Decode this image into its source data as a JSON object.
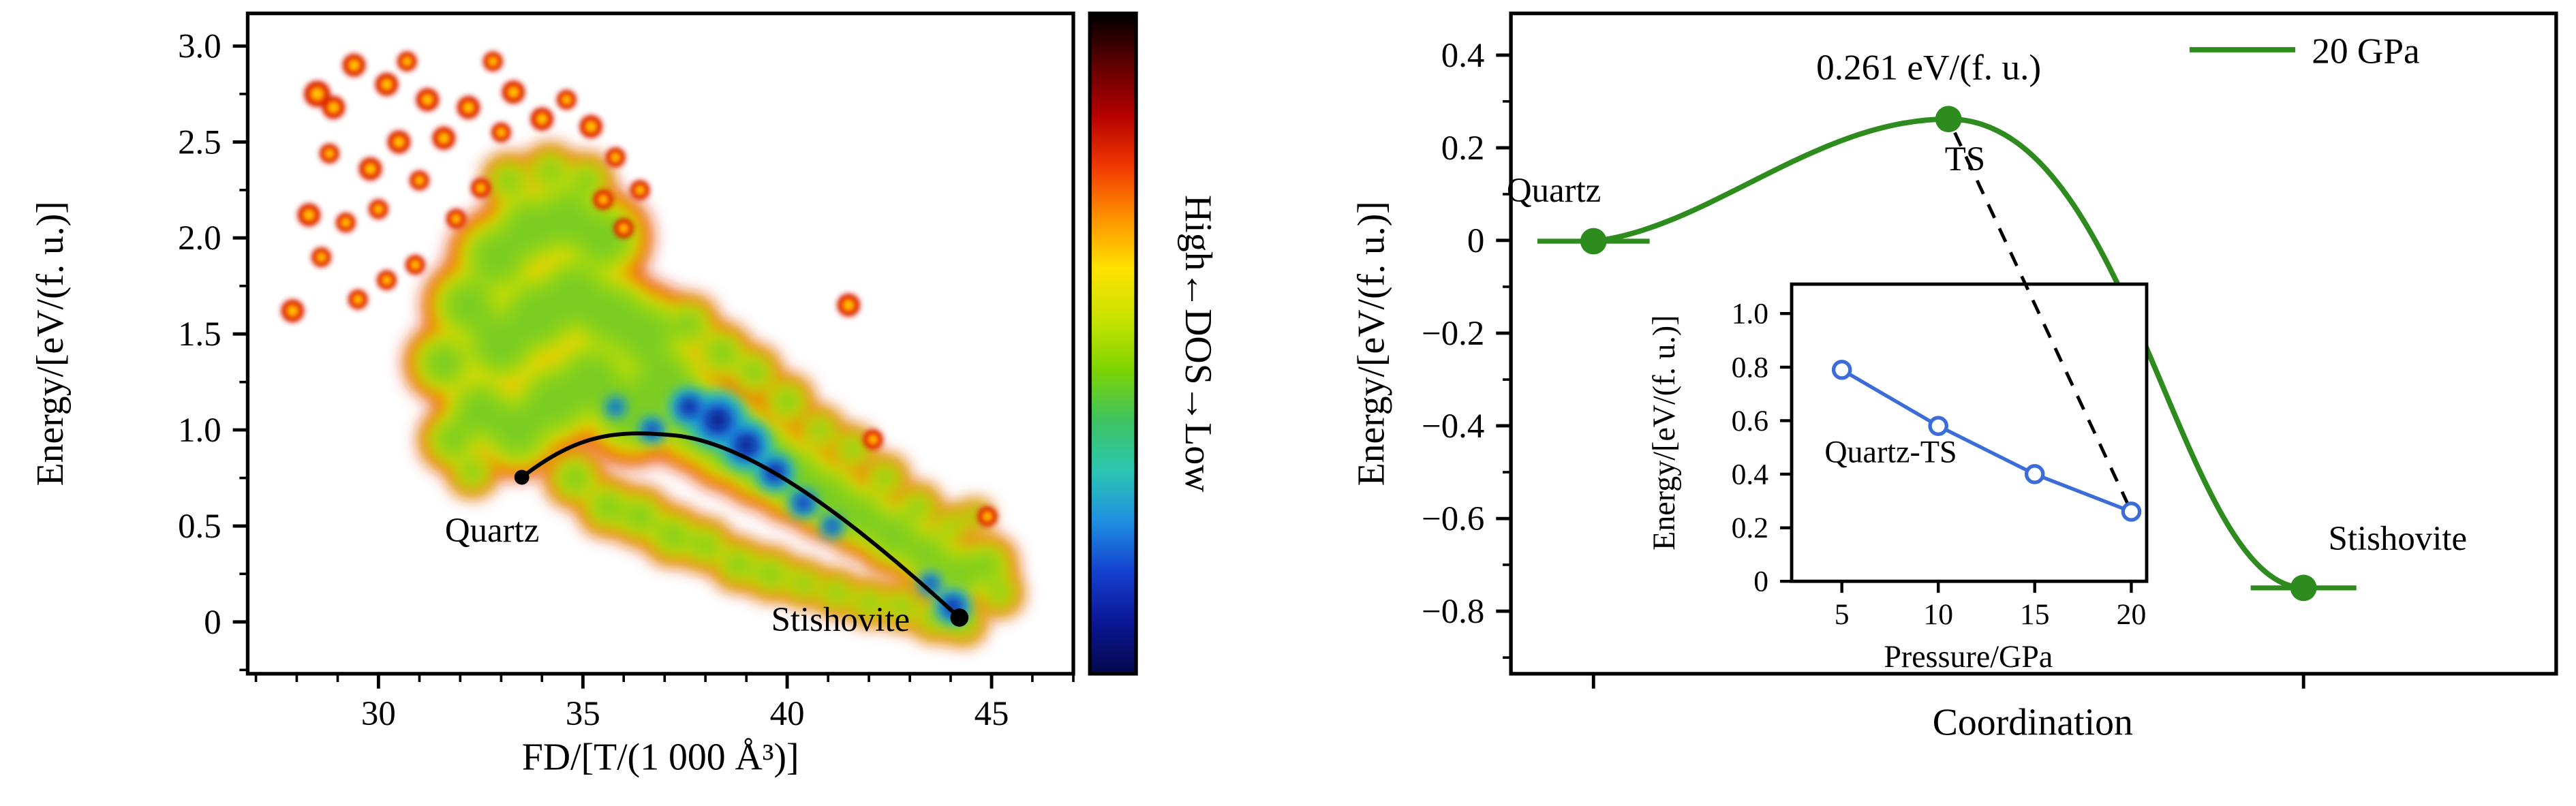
{
  "figure": {
    "background": "#ffffff"
  },
  "chart_data": [
    {
      "id": "dos-density-map",
      "type": "heatmap",
      "xlabel": "FD/[T/(1 000 Å³)]",
      "ylabel": "Energy/[eV/(f. u.)]",
      "xlim": [
        26.8,
        47.0
      ],
      "ylim": [
        -0.27,
        3.17
      ],
      "xticks": [
        30,
        35,
        40,
        45
      ],
      "yticks": [
        {
          "v": 0,
          "label": "0"
        },
        {
          "v": 0.5,
          "label": "0.5"
        },
        {
          "v": 1,
          "label": "1.0"
        },
        {
          "v": 1.5,
          "label": "1.5"
        },
        {
          "v": 2,
          "label": "2.0"
        },
        {
          "v": 2.5,
          "label": "2.5"
        },
        {
          "v": 3,
          "label": "3.0"
        }
      ],
      "grid": false,
      "colorbar": {
        "label": "High←DOS→Low",
        "orientation": "vertical",
        "stops": [
          "#000000",
          "#5f0000",
          "#b40000",
          "#f03800",
          "#ff9000",
          "#ffe100",
          "#c9e300",
          "#7fd400",
          "#3fc35f",
          "#2cc6b2",
          "#1f8fe0",
          "#1440cf",
          "#0a1694",
          "#04094d"
        ]
      },
      "annotations": [
        {
          "text": "Quartz",
          "x": 32.8,
          "y": 0.42
        },
        {
          "text": "Stishovite",
          "x": 41.3,
          "y": -0.05
        }
      ],
      "transition_path": {
        "color": "#000000",
        "start": {
          "label": "Quartz",
          "x": 33.5,
          "y": 0.75
        },
        "peak": {
          "x": 37.4,
          "y": 0.97
        },
        "end": {
          "label": "Stishovite",
          "x": 44.2,
          "y": 0.02
        }
      },
      "density_cloud": {
        "layers": [
          {
            "color": "#d81e00",
            "scale": 1.0
          },
          {
            "color": "#ff7a00",
            "scale": 0.9
          },
          {
            "color": "#ffd800",
            "scale": 0.8
          },
          {
            "color": "#bfdf00",
            "scale": 0.7
          },
          {
            "color": "#7ccd20",
            "scale": 0.57
          }
        ],
        "kernels": [
          [
            31.6,
            1.35,
            22
          ],
          [
            32.2,
            1.65,
            26
          ],
          [
            32.9,
            1.9,
            28
          ],
          [
            33.7,
            2.05,
            28
          ],
          [
            34.6,
            2.1,
            28
          ],
          [
            35.5,
            2.0,
            28
          ],
          [
            33.0,
            1.45,
            30
          ],
          [
            33.9,
            1.6,
            32
          ],
          [
            34.8,
            1.7,
            32
          ],
          [
            35.7,
            1.6,
            30
          ],
          [
            36.5,
            1.5,
            30
          ],
          [
            32.5,
            1.1,
            26
          ],
          [
            33.4,
            1.0,
            28
          ],
          [
            34.3,
            1.15,
            30
          ],
          [
            35.2,
            1.25,
            32
          ],
          [
            36.2,
            1.1,
            32
          ],
          [
            37.0,
            1.25,
            30
          ],
          [
            33.2,
            2.3,
            14
          ],
          [
            34.2,
            2.35,
            14
          ],
          [
            35.1,
            2.3,
            14
          ],
          [
            31.8,
            0.95,
            18
          ],
          [
            32.3,
            0.78,
            13
          ],
          [
            37.8,
            1.05,
            30
          ],
          [
            38.6,
            0.95,
            30
          ],
          [
            39.4,
            0.85,
            28
          ],
          [
            40.2,
            0.75,
            26
          ],
          [
            41.0,
            0.65,
            24
          ],
          [
            41.8,
            0.55,
            22
          ],
          [
            42.6,
            0.45,
            22
          ],
          [
            43.4,
            0.35,
            20
          ],
          [
            44.2,
            0.25,
            20
          ],
          [
            44.9,
            0.3,
            16
          ],
          [
            45.2,
            0.15,
            12
          ],
          [
            37.6,
            1.55,
            16
          ],
          [
            38.4,
            1.4,
            16
          ],
          [
            39.2,
            1.3,
            14
          ],
          [
            40.0,
            1.15,
            14
          ],
          [
            40.8,
            1.0,
            12
          ],
          [
            41.6,
            0.9,
            12
          ],
          [
            42.4,
            0.75,
            12
          ],
          [
            43.2,
            0.6,
            12
          ],
          [
            44.0,
            0.5,
            10
          ],
          [
            44.6,
            0.55,
            8
          ],
          [
            34.8,
            0.75,
            16
          ],
          [
            35.6,
            0.6,
            16
          ],
          [
            36.4,
            0.55,
            16
          ],
          [
            37.2,
            0.45,
            16
          ],
          [
            38.0,
            0.4,
            14
          ],
          [
            38.8,
            0.3,
            14
          ],
          [
            39.6,
            0.25,
            14
          ],
          [
            40.4,
            0.2,
            12
          ],
          [
            41.2,
            0.15,
            12
          ],
          [
            42.0,
            0.1,
            12
          ],
          [
            42.8,
            0.08,
            12
          ],
          [
            43.6,
            0.02,
            12
          ],
          [
            44.3,
            0.0,
            12
          ]
        ],
        "core_layers": [
          {
            "color": "#2fc4b4",
            "scale": 1.0
          },
          {
            "color": "#1f8fe0",
            "scale": 0.72
          },
          {
            "color": "#1237c0",
            "scale": 0.46
          },
          {
            "color": "#061668",
            "scale": 0.24
          }
        ],
        "cores": [
          [
            38.3,
            1.05,
            18
          ],
          [
            39.0,
            0.92,
            16
          ],
          [
            39.7,
            0.78,
            12
          ],
          [
            37.6,
            1.12,
            12
          ],
          [
            40.4,
            0.62,
            9
          ],
          [
            41.1,
            0.5,
            7
          ],
          [
            44.05,
            0.08,
            11
          ],
          [
            43.5,
            0.2,
            7
          ],
          [
            36.7,
            1.0,
            8
          ],
          [
            35.8,
            1.12,
            6
          ]
        ],
        "blob_layers": [
          {
            "color": "#d81e00",
            "scale": 1.0
          },
          {
            "color": "#ff7a00",
            "scale": 0.62
          },
          {
            "color": "#ffd800",
            "scale": 0.34
          }
        ],
        "scatter_blobs": [
          [
            27.9,
            1.62,
            7
          ],
          [
            28.3,
            2.12,
            7
          ],
          [
            28.5,
            2.75,
            8
          ],
          [
            28.9,
            2.68,
            7
          ],
          [
            28.8,
            2.44,
            6
          ],
          [
            29.4,
            2.9,
            7
          ],
          [
            29.2,
            2.08,
            6
          ],
          [
            29.8,
            2.36,
            7
          ],
          [
            30.2,
            2.8,
            7
          ],
          [
            30.7,
            2.92,
            6
          ],
          [
            30.5,
            2.5,
            7
          ],
          [
            30.0,
            2.15,
            6
          ],
          [
            31.2,
            2.72,
            7
          ],
          [
            31.0,
            2.3,
            6
          ],
          [
            31.6,
            2.52,
            7
          ],
          [
            32.2,
            2.68,
            7
          ],
          [
            32.8,
            2.92,
            6
          ],
          [
            33.3,
            2.76,
            7
          ],
          [
            33.0,
            2.55,
            6
          ],
          [
            34.0,
            2.62,
            7
          ],
          [
            34.6,
            2.72,
            6
          ],
          [
            35.2,
            2.58,
            7
          ],
          [
            29.5,
            1.68,
            6
          ],
          [
            30.2,
            1.78,
            6
          ],
          [
            30.9,
            1.86,
            6
          ],
          [
            28.6,
            1.9,
            6
          ],
          [
            35.8,
            2.42,
            6
          ],
          [
            36.4,
            2.25,
            6
          ],
          [
            35.5,
            2.2,
            6
          ],
          [
            36.0,
            2.05,
            6
          ],
          [
            31.9,
            2.1,
            6
          ],
          [
            32.5,
            2.26,
            6
          ],
          [
            41.5,
            1.65,
            7
          ],
          [
            42.1,
            0.95,
            6
          ],
          [
            44.9,
            0.55,
            6
          ]
        ]
      }
    },
    {
      "id": "transition-energy-curve",
      "type": "line",
      "xlabel": "Coordination",
      "ylabel": "Energy/[eV/(f. u.)]",
      "xlim": [
        0,
        1
      ],
      "ylim": [
        -0.935,
        0.49
      ],
      "yticks": [
        {
          "v": 0.4,
          "label": "0.4"
        },
        {
          "v": 0.2,
          "label": "0.2"
        },
        {
          "v": 0,
          "label": "0"
        },
        {
          "v": -0.2,
          "label": "−0.2"
        },
        {
          "v": -0.4,
          "label": "−0.4"
        },
        {
          "v": -0.6,
          "label": "−0.6"
        },
        {
          "v": -0.8,
          "label": "−0.8"
        }
      ],
      "legend": {
        "label": "20 GPa",
        "color": "#2e8b1e",
        "position": "top-right"
      },
      "peak_annotation": "0.261 eV/(f. u.)",
      "series": [
        {
          "name": "20 GPa",
          "color": "#2e8b1e",
          "points": [
            {
              "label": "Quartz",
              "x_frac": 0.079,
              "energy": 0.0
            },
            {
              "label": "TS",
              "x_frac": 0.419,
              "energy": 0.261
            },
            {
              "label": "Stishovite",
              "x_frac": 0.758,
              "energy": -0.75
            }
          ]
        }
      ],
      "dashed_connector": {
        "from": "TS",
        "to": "inset point at 20 GPa",
        "color": "#000000",
        "style": "dashed"
      }
    },
    {
      "id": "inset-quartz-ts-barrier",
      "type": "scatter",
      "label": "Quartz-TS",
      "xlabel": "Pressure/GPa",
      "ylabel": "Energy/[eV/(f. u.)]",
      "xlim": [
        2.4,
        20.8
      ],
      "ylim": [
        0,
        1.11
      ],
      "xticks": [
        5,
        10,
        15,
        20
      ],
      "yticks": [
        {
          "v": 0,
          "label": "0"
        },
        {
          "v": 0.2,
          "label": "0.2"
        },
        {
          "v": 0.4,
          "label": "0.4"
        },
        {
          "v": 0.6,
          "label": "0.6"
        },
        {
          "v": 0.8,
          "label": "0.8"
        },
        {
          "v": 1.0,
          "label": "1.0"
        }
      ],
      "series": [
        {
          "name": "Quartz-TS",
          "color": "#3b6cd9",
          "marker": "open-circle",
          "x": [
            5,
            10,
            15,
            20
          ],
          "y": [
            0.79,
            0.58,
            0.4,
            0.26
          ]
        }
      ]
    }
  ]
}
